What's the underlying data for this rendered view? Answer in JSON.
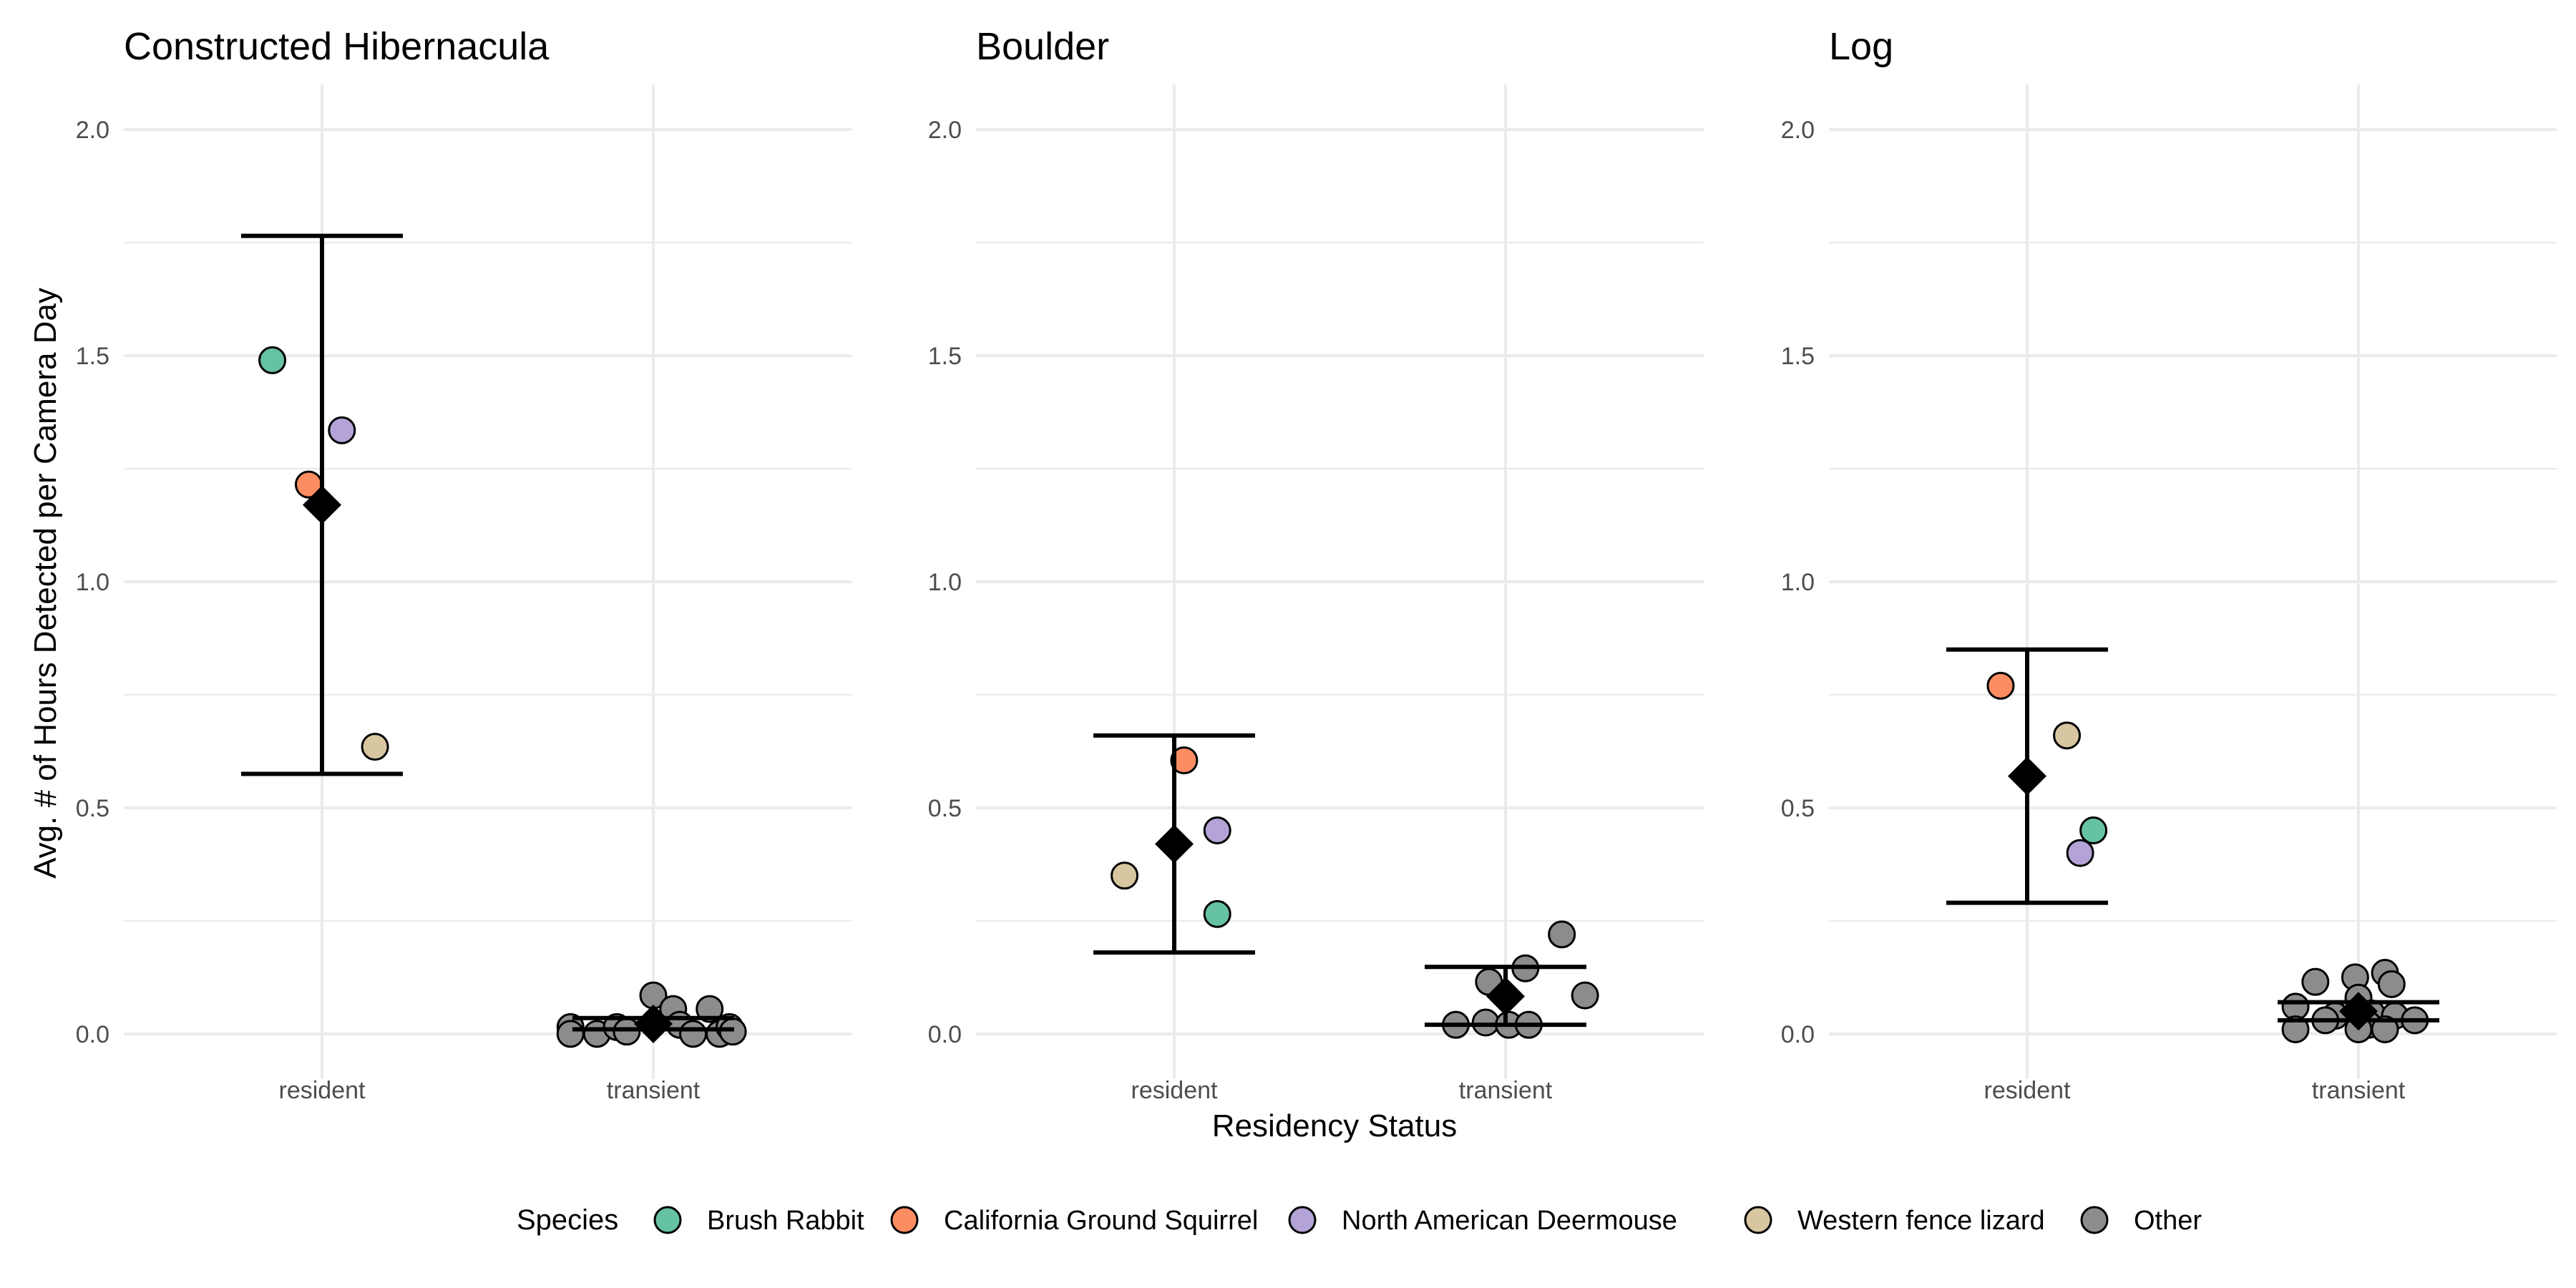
{
  "chart_data": {
    "type": "scatter",
    "xlabel": "Residency Status",
    "ylabel": "Avg. # of Hours Detected per Camera Day",
    "ylim": [
      -0.1,
      2.1
    ],
    "y_ticks": [
      "0.0",
      "0.5",
      "1.0",
      "1.5",
      "2.0"
    ],
    "categories": [
      "resident",
      "transient"
    ],
    "legend": {
      "title": "Species",
      "position": "bottom",
      "items": [
        {
          "label": "Brush Rabbit",
          "color": "#66c2a5"
        },
        {
          "label": "California Ground Squirrel",
          "color": "#fc8d62"
        },
        {
          "label": "North American Deermouse",
          "color": "#b3a3d6"
        },
        {
          "label": "Western fence lizard",
          "color": "#d8c6a0"
        },
        {
          "label": "Other",
          "color": "#8c8c8c"
        }
      ]
    },
    "panels": [
      {
        "title": "Constructed Hibernacula",
        "points": [
          {
            "category": "resident",
            "jitter": -0.15,
            "y": 1.49,
            "species": "Brush Rabbit"
          },
          {
            "category": "resident",
            "jitter": 0.06,
            "y": 1.335,
            "species": "North American Deermouse"
          },
          {
            "category": "resident",
            "jitter": -0.04,
            "y": 1.215,
            "species": "California Ground Squirrel"
          },
          {
            "category": "resident",
            "jitter": 0.16,
            "y": 0.635,
            "species": "Western fence lizard"
          },
          {
            "category": "transient",
            "jitter": -0.25,
            "y": 0.015,
            "species": "Other"
          },
          {
            "category": "transient",
            "jitter": -0.25,
            "y": 0.0,
            "species": "Other"
          },
          {
            "category": "transient",
            "jitter": -0.17,
            "y": 0.0,
            "species": "Other"
          },
          {
            "category": "transient",
            "jitter": -0.11,
            "y": 0.015,
            "species": "Other"
          },
          {
            "category": "transient",
            "jitter": -0.08,
            "y": 0.005,
            "species": "Other"
          },
          {
            "category": "transient",
            "jitter": 0.0,
            "y": 0.085,
            "species": "Other"
          },
          {
            "category": "transient",
            "jitter": 0.06,
            "y": 0.055,
            "species": "Other"
          },
          {
            "category": "transient",
            "jitter": 0.08,
            "y": 0.02,
            "species": "Other"
          },
          {
            "category": "transient",
            "jitter": 0.12,
            "y": 0.0,
            "species": "Other"
          },
          {
            "category": "transient",
            "jitter": 0.17,
            "y": 0.055,
            "species": "Other"
          },
          {
            "category": "transient",
            "jitter": 0.2,
            "y": 0.0,
            "species": "Other"
          },
          {
            "category": "transient",
            "jitter": 0.23,
            "y": 0.015,
            "species": "Other"
          },
          {
            "category": "transient",
            "jitter": 0.24,
            "y": 0.005,
            "species": "Other"
          }
        ],
        "summary": [
          {
            "category": "resident",
            "mean": 1.17,
            "lower": 0.575,
            "upper": 1.765
          },
          {
            "category": "transient",
            "mean": 0.022,
            "lower": 0.01,
            "upper": 0.035
          }
        ]
      },
      {
        "title": "Boulder",
        "points": [
          {
            "category": "resident",
            "jitter": 0.03,
            "y": 0.605,
            "species": "California Ground Squirrel"
          },
          {
            "category": "resident",
            "jitter": 0.13,
            "y": 0.45,
            "species": "North American Deermouse"
          },
          {
            "category": "resident",
            "jitter": -0.15,
            "y": 0.35,
            "species": "Western fence lizard"
          },
          {
            "category": "resident",
            "jitter": 0.13,
            "y": 0.265,
            "species": "Brush Rabbit"
          },
          {
            "category": "transient",
            "jitter": 0.17,
            "y": 0.22,
            "species": "Other"
          },
          {
            "category": "transient",
            "jitter": 0.06,
            "y": 0.145,
            "species": "Other"
          },
          {
            "category": "transient",
            "jitter": -0.05,
            "y": 0.115,
            "species": "Other"
          },
          {
            "category": "transient",
            "jitter": 0.24,
            "y": 0.085,
            "species": "Other"
          },
          {
            "category": "transient",
            "jitter": -0.15,
            "y": 0.02,
            "species": "Other"
          },
          {
            "category": "transient",
            "jitter": -0.06,
            "y": 0.025,
            "species": "Other"
          },
          {
            "category": "transient",
            "jitter": 0.01,
            "y": 0.02,
            "species": "Other"
          },
          {
            "category": "transient",
            "jitter": 0.07,
            "y": 0.02,
            "species": "Other"
          }
        ],
        "summary": [
          {
            "category": "resident",
            "mean": 0.42,
            "lower": 0.18,
            "upper": 0.66
          },
          {
            "category": "transient",
            "mean": 0.083,
            "lower": 0.02,
            "upper": 0.148
          }
        ]
      },
      {
        "title": "Log",
        "points": [
          {
            "category": "resident",
            "jitter": -0.08,
            "y": 0.77,
            "species": "California Ground Squirrel"
          },
          {
            "category": "resident",
            "jitter": 0.12,
            "y": 0.66,
            "species": "Western fence lizard"
          },
          {
            "category": "resident",
            "jitter": 0.2,
            "y": 0.45,
            "species": "Brush Rabbit"
          },
          {
            "category": "resident",
            "jitter": 0.16,
            "y": 0.4,
            "species": "North American Deermouse"
          },
          {
            "category": "transient",
            "jitter": 0.08,
            "y": 0.135,
            "species": "Other"
          },
          {
            "category": "transient",
            "jitter": -0.01,
            "y": 0.125,
            "species": "Other"
          },
          {
            "category": "transient",
            "jitter": -0.13,
            "y": 0.115,
            "species": "Other"
          },
          {
            "category": "transient",
            "jitter": 0.1,
            "y": 0.11,
            "species": "Other"
          },
          {
            "category": "transient",
            "jitter": 0.0,
            "y": 0.08,
            "species": "Other"
          },
          {
            "category": "transient",
            "jitter": -0.19,
            "y": 0.06,
            "species": "Other"
          },
          {
            "category": "transient",
            "jitter": 0.04,
            "y": 0.045,
            "species": "Other"
          },
          {
            "category": "transient",
            "jitter": -0.07,
            "y": 0.04,
            "species": "Other"
          },
          {
            "category": "transient",
            "jitter": 0.11,
            "y": 0.04,
            "species": "Other"
          },
          {
            "category": "transient",
            "jitter": 0.17,
            "y": 0.03,
            "species": "Other"
          },
          {
            "category": "transient",
            "jitter": -0.1,
            "y": 0.03,
            "species": "Other"
          },
          {
            "category": "transient",
            "jitter": 0.03,
            "y": 0.02,
            "species": "Other"
          },
          {
            "category": "transient",
            "jitter": -0.19,
            "y": 0.01,
            "species": "Other"
          },
          {
            "category": "transient",
            "jitter": 0.0,
            "y": 0.01,
            "species": "Other"
          },
          {
            "category": "transient",
            "jitter": 0.08,
            "y": 0.01,
            "species": "Other"
          }
        ],
        "summary": [
          {
            "category": "resident",
            "mean": 0.57,
            "lower": 0.29,
            "upper": 0.85
          },
          {
            "category": "transient",
            "mean": 0.05,
            "lower": 0.03,
            "upper": 0.07
          }
        ]
      }
    ]
  }
}
